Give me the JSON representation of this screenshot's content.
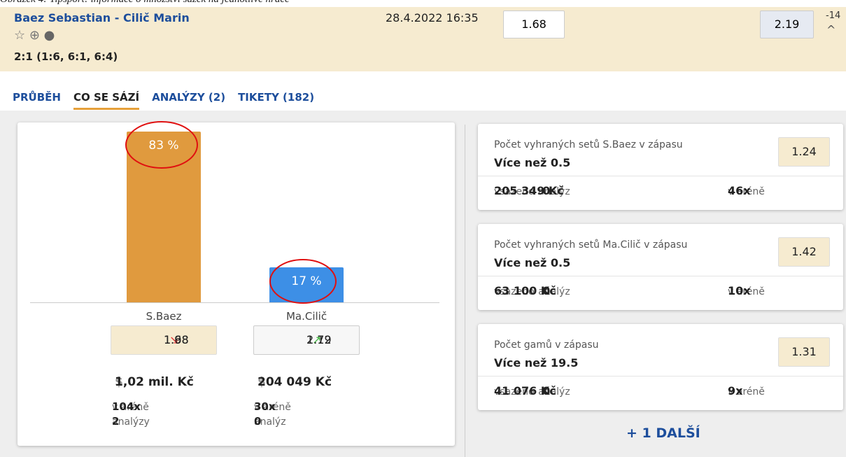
{
  "caption": "Obrázek 4: Tipsport: informace o množství sázek na jednotlivé hráče",
  "match": {
    "name": "Baez Sebastian - Cilič Marin",
    "datetime": "28.4.2022 16:35",
    "score": "2:1 (1:6, 6:1, 6:4)",
    "odds": [
      "1.68",
      "2.19"
    ],
    "more": "-14"
  },
  "tabs": [
    "PRŮBĚH",
    "CO SE SÁZÍ",
    "ANALÝZY (2)",
    "TIKETY (182)"
  ],
  "chart_data": {
    "type": "bar",
    "categories": [
      "S.Baez",
      "Ma.Cilič"
    ],
    "values": [
      83,
      17
    ],
    "value_labels": [
      "83 %",
      "17 %"
    ],
    "colors": [
      "#e09a3e",
      "#3d8fe6"
    ]
  },
  "players": [
    {
      "odds_from": "1.98",
      "odds_to": "1.68",
      "amount": "1,02 mil. Kč",
      "arena_count": "104x",
      "arena_text": "v aréně",
      "analyses_count": "2",
      "analyses_text": "analýzy"
    },
    {
      "odds_from": "1.72",
      "odds_to": "2.19",
      "amount": "204 049 Kč",
      "arena_count": "30x",
      "arena_text": "v aréně",
      "analyses_count": "0",
      "analyses_text": "analýz"
    }
  ],
  "bets": [
    {
      "title": "Počet vyhraných setů S.Baez v zápasu",
      "pick": "Více než 0.5",
      "odds": "1.24",
      "amount": "205 349 Kč",
      "staked": "vsazeno",
      "analyses_count": "0",
      "analyses_text": "analýz",
      "arena_count": "46x",
      "arena_text": "v aréně"
    },
    {
      "title": "Počet vyhraných setů Ma.Cilič v zápasu",
      "pick": "Více než 0.5",
      "odds": "1.42",
      "amount": "63 100 Kč",
      "staked": "vsazeno",
      "analyses_count": "0",
      "analyses_text": "analýz",
      "arena_count": "10x",
      "arena_text": "v aréně"
    },
    {
      "title": "Počet gamů v zápasu",
      "pick": "Více než 19.5",
      "odds": "1.31",
      "amount": "41 076 Kč",
      "staked": "vsazeno",
      "analyses_count": "0",
      "analyses_text": "analýz",
      "arena_count": "9x",
      "arena_text": "v aréně"
    }
  ],
  "more_bets": "+ 1 DALŠÍ"
}
